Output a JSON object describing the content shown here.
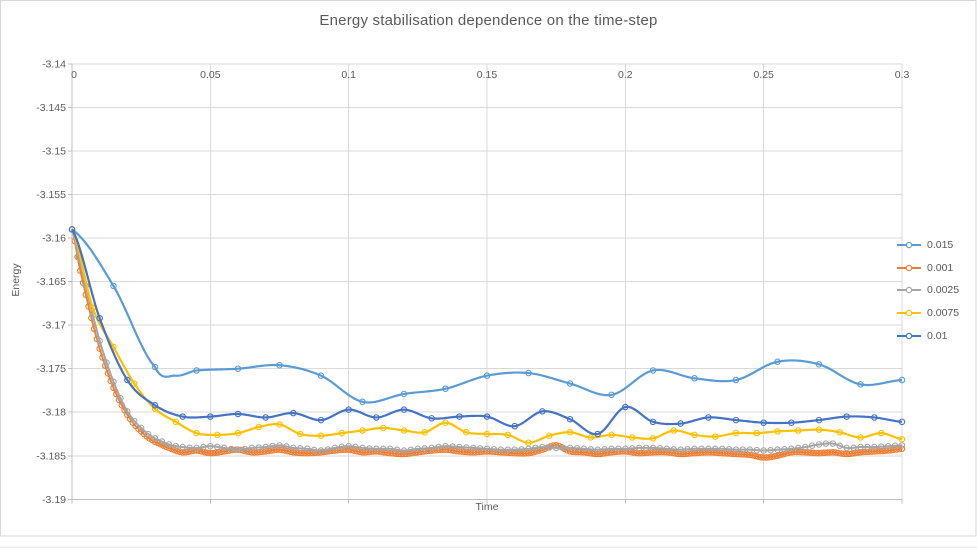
{
  "chart_data": {
    "type": "line",
    "title": "Energy stabilisation dependence on the time-step",
    "xlabel": "Time",
    "ylabel": "Energy",
    "xlim": [
      0,
      0.3
    ],
    "ylim": [
      -3.19,
      -3.14
    ],
    "grid": true,
    "x_ticks": [
      0,
      0.05,
      0.1,
      0.15,
      0.2,
      0.25,
      0.3
    ],
    "x_tick_labels": [
      "0",
      "0.05",
      "0.1",
      "0.15",
      "0.2",
      "0.25",
      "0.3"
    ],
    "y_ticks": [
      -3.14,
      -3.145,
      -3.15,
      -3.155,
      -3.16,
      -3.165,
      -3.17,
      -3.175,
      -3.18,
      -3.185,
      -3.19
    ],
    "y_tick_labels": [
      "-3.14",
      "-3.145",
      "-3.15",
      "-3.155",
      "-3.16",
      "-3.165",
      "-3.17",
      "-3.175",
      "-3.18",
      "-3.185",
      "-3.19"
    ],
    "legend": {
      "position": "right",
      "items": [
        "0.015",
        "0.001",
        "0.0025",
        "0.0075",
        "0.01"
      ]
    },
    "colors": {
      "text": "#595959",
      "grid": "#D9D9D9",
      "axis": "#BFBFBF"
    },
    "series": [
      {
        "name": "0.015",
        "color": "#5B9BD5",
        "marker": "open-circle",
        "time_step": 0.015,
        "points": [
          [
            0,
            -3.159
          ],
          [
            0.015,
            -3.1655
          ],
          [
            0.03,
            -3.1748
          ],
          [
            0.0375,
            -3.1758
          ],
          [
            0.045,
            -3.1752
          ],
          [
            0.06,
            -3.175
          ],
          [
            0.075,
            -3.1746
          ],
          [
            0.09,
            -3.1758
          ],
          [
            0.105,
            -3.1788
          ],
          [
            0.12,
            -3.1779
          ],
          [
            0.135,
            -3.1773
          ],
          [
            0.15,
            -3.1758
          ],
          [
            0.165,
            -3.1755
          ],
          [
            0.18,
            -3.1767
          ],
          [
            0.195,
            -3.178
          ],
          [
            0.21,
            -3.1752
          ],
          [
            0.225,
            -3.1761
          ],
          [
            0.24,
            -3.1763
          ],
          [
            0.255,
            -3.1742
          ],
          [
            0.27,
            -3.1745
          ],
          [
            0.285,
            -3.1768
          ],
          [
            0.3,
            -3.1763
          ]
        ]
      },
      {
        "name": "0.001",
        "color": "#ED7D31",
        "marker": "open-circle",
        "time_step": 0.001,
        "points": [
          [
            0,
            -3.159
          ],
          [
            0.0025,
            -3.163
          ],
          [
            0.005,
            -3.1665
          ],
          [
            0.0075,
            -3.1698
          ],
          [
            0.01,
            -3.1727
          ],
          [
            0.0125,
            -3.1751
          ],
          [
            0.015,
            -3.1772
          ],
          [
            0.0175,
            -3.1789
          ],
          [
            0.02,
            -3.1803
          ],
          [
            0.0225,
            -3.1814
          ],
          [
            0.025,
            -3.1822
          ],
          [
            0.0275,
            -3.1829
          ],
          [
            0.03,
            -3.1834
          ],
          [
            0.035,
            -3.1841
          ],
          [
            0.04,
            -3.1846
          ],
          [
            0.045,
            -3.1844
          ],
          [
            0.05,
            -3.1847
          ],
          [
            0.055,
            -3.1845
          ],
          [
            0.06,
            -3.1843
          ],
          [
            0.065,
            -3.1846
          ],
          [
            0.07,
            -3.1845
          ],
          [
            0.075,
            -3.1843
          ],
          [
            0.08,
            -3.1846
          ],
          [
            0.085,
            -3.1847
          ],
          [
            0.09,
            -3.1846
          ],
          [
            0.095,
            -3.1844
          ],
          [
            0.1,
            -3.1843
          ],
          [
            0.105,
            -3.1846
          ],
          [
            0.11,
            -3.1845
          ],
          [
            0.115,
            -3.1847
          ],
          [
            0.12,
            -3.1848
          ],
          [
            0.125,
            -3.1846
          ],
          [
            0.13,
            -3.1844
          ],
          [
            0.135,
            -3.1843
          ],
          [
            0.14,
            -3.1845
          ],
          [
            0.145,
            -3.1846
          ],
          [
            0.15,
            -3.1845
          ],
          [
            0.155,
            -3.1846
          ],
          [
            0.16,
            -3.1847
          ],
          [
            0.165,
            -3.1847
          ],
          [
            0.17,
            -3.1843
          ],
          [
            0.175,
            -3.1838
          ],
          [
            0.18,
            -3.1845
          ],
          [
            0.185,
            -3.1846
          ],
          [
            0.19,
            -3.1848
          ],
          [
            0.195,
            -3.1846
          ],
          [
            0.2,
            -3.1845
          ],
          [
            0.205,
            -3.1847
          ],
          [
            0.21,
            -3.1846
          ],
          [
            0.215,
            -3.1846
          ],
          [
            0.22,
            -3.1848
          ],
          [
            0.225,
            -3.1847
          ],
          [
            0.23,
            -3.1846
          ],
          [
            0.235,
            -3.1847
          ],
          [
            0.24,
            -3.1848
          ],
          [
            0.245,
            -3.1849
          ],
          [
            0.25,
            -3.1852
          ],
          [
            0.255,
            -3.185
          ],
          [
            0.26,
            -3.1846
          ],
          [
            0.265,
            -3.1846
          ],
          [
            0.27,
            -3.1847
          ],
          [
            0.275,
            -3.1846
          ],
          [
            0.28,
            -3.1848
          ],
          [
            0.285,
            -3.1846
          ],
          [
            0.29,
            -3.1845
          ],
          [
            0.295,
            -3.1844
          ],
          [
            0.3,
            -3.1842
          ]
        ]
      },
      {
        "name": "0.0025",
        "color": "#A5A5A5",
        "marker": "open-circle",
        "time_step": 0.0025,
        "points": [
          [
            0,
            -3.159
          ],
          [
            0.0025,
            -3.1622
          ],
          [
            0.005,
            -3.1655
          ],
          [
            0.0075,
            -3.1688
          ],
          [
            0.01,
            -3.1718
          ],
          [
            0.0125,
            -3.1743
          ],
          [
            0.015,
            -3.1765
          ],
          [
            0.0175,
            -3.1784
          ],
          [
            0.02,
            -3.1799
          ],
          [
            0.0225,
            -3.181
          ],
          [
            0.025,
            -3.1818
          ],
          [
            0.0275,
            -3.1825
          ],
          [
            0.03,
            -3.183
          ],
          [
            0.035,
            -3.1837
          ],
          [
            0.04,
            -3.184
          ],
          [
            0.045,
            -3.1841
          ],
          [
            0.05,
            -3.1839
          ],
          [
            0.055,
            -3.1841
          ],
          [
            0.06,
            -3.1843
          ],
          [
            0.065,
            -3.1841
          ],
          [
            0.07,
            -3.184
          ],
          [
            0.075,
            -3.1838
          ],
          [
            0.08,
            -3.1841
          ],
          [
            0.085,
            -3.1842
          ],
          [
            0.09,
            -3.1844
          ],
          [
            0.095,
            -3.1841
          ],
          [
            0.1,
            -3.1839
          ],
          [
            0.105,
            -3.1841
          ],
          [
            0.11,
            -3.1842
          ],
          [
            0.115,
            -3.1842
          ],
          [
            0.12,
            -3.1844
          ],
          [
            0.125,
            -3.1842
          ],
          [
            0.13,
            -3.1841
          ],
          [
            0.135,
            -3.1839
          ],
          [
            0.14,
            -3.184
          ],
          [
            0.145,
            -3.1841
          ],
          [
            0.15,
            -3.1842
          ],
          [
            0.155,
            -3.1843
          ],
          [
            0.16,
            -3.1843
          ],
          [
            0.165,
            -3.1842
          ],
          [
            0.17,
            -3.184
          ],
          [
            0.175,
            -3.1841
          ],
          [
            0.18,
            -3.1841
          ],
          [
            0.185,
            -3.1842
          ],
          [
            0.19,
            -3.1843
          ],
          [
            0.195,
            -3.1842
          ],
          [
            0.2,
            -3.1842
          ],
          [
            0.205,
            -3.1841
          ],
          [
            0.21,
            -3.1841
          ],
          [
            0.215,
            -3.1842
          ],
          [
            0.22,
            -3.1843
          ],
          [
            0.225,
            -3.1842
          ],
          [
            0.23,
            -3.1842
          ],
          [
            0.235,
            -3.1842
          ],
          [
            0.24,
            -3.1843
          ],
          [
            0.245,
            -3.1843
          ],
          [
            0.25,
            -3.1844
          ],
          [
            0.255,
            -3.1843
          ],
          [
            0.26,
            -3.1842
          ],
          [
            0.265,
            -3.184
          ],
          [
            0.27,
            -3.1837
          ],
          [
            0.275,
            -3.1836
          ],
          [
            0.28,
            -3.1841
          ],
          [
            0.285,
            -3.184
          ],
          [
            0.29,
            -3.184
          ],
          [
            0.295,
            -3.1839
          ],
          [
            0.3,
            -3.1838
          ]
        ]
      },
      {
        "name": "0.0075",
        "color": "#FFC000",
        "marker": "open-circle",
        "time_step": 0.0075,
        "points": [
          [
            0,
            -3.159
          ],
          [
            0.0075,
            -3.168
          ],
          [
            0.015,
            -3.1725
          ],
          [
            0.0225,
            -3.1767
          ],
          [
            0.03,
            -3.1796
          ],
          [
            0.0375,
            -3.1811
          ],
          [
            0.045,
            -3.1824
          ],
          [
            0.0525,
            -3.1826
          ],
          [
            0.06,
            -3.1824
          ],
          [
            0.0675,
            -3.1817
          ],
          [
            0.075,
            -3.1814
          ],
          [
            0.0825,
            -3.1825
          ],
          [
            0.09,
            -3.1827
          ],
          [
            0.0975,
            -3.1824
          ],
          [
            0.105,
            -3.1821
          ],
          [
            0.1125,
            -3.1818
          ],
          [
            0.12,
            -3.1821
          ],
          [
            0.1275,
            -3.1823
          ],
          [
            0.135,
            -3.1812
          ],
          [
            0.1425,
            -3.1823
          ],
          [
            0.15,
            -3.1825
          ],
          [
            0.1575,
            -3.1826
          ],
          [
            0.165,
            -3.1835
          ],
          [
            0.1725,
            -3.1827
          ],
          [
            0.18,
            -3.1823
          ],
          [
            0.1875,
            -3.1829
          ],
          [
            0.195,
            -3.1826
          ],
          [
            0.2025,
            -3.1829
          ],
          [
            0.21,
            -3.183
          ],
          [
            0.2175,
            -3.1821
          ],
          [
            0.225,
            -3.1826
          ],
          [
            0.2325,
            -3.1828
          ],
          [
            0.24,
            -3.1824
          ],
          [
            0.2475,
            -3.1824
          ],
          [
            0.255,
            -3.1822
          ],
          [
            0.2625,
            -3.1821
          ],
          [
            0.27,
            -3.182
          ],
          [
            0.2775,
            -3.1823
          ],
          [
            0.285,
            -3.1829
          ],
          [
            0.2925,
            -3.1824
          ],
          [
            0.3,
            -3.1831
          ]
        ]
      },
      {
        "name": "0.01",
        "color": "#4472C4",
        "marker": "open-circle",
        "time_step": 0.01,
        "points": [
          [
            0,
            -3.159
          ],
          [
            0.01,
            -3.1692
          ],
          [
            0.02,
            -3.1763
          ],
          [
            0.03,
            -3.1792
          ],
          [
            0.04,
            -3.1805
          ],
          [
            0.05,
            -3.1805
          ],
          [
            0.06,
            -3.1802
          ],
          [
            0.07,
            -3.1806
          ],
          [
            0.08,
            -3.1801
          ],
          [
            0.09,
            -3.1809
          ],
          [
            0.1,
            -3.1797
          ],
          [
            0.11,
            -3.1806
          ],
          [
            0.12,
            -3.1797
          ],
          [
            0.13,
            -3.1807
          ],
          [
            0.14,
            -3.1805
          ],
          [
            0.15,
            -3.1805
          ],
          [
            0.16,
            -3.1816
          ],
          [
            0.17,
            -3.1799
          ],
          [
            0.18,
            -3.1808
          ],
          [
            0.19,
            -3.1825
          ],
          [
            0.2,
            -3.1794
          ],
          [
            0.21,
            -3.1811
          ],
          [
            0.22,
            -3.1813
          ],
          [
            0.23,
            -3.1806
          ],
          [
            0.24,
            -3.1809
          ],
          [
            0.25,
            -3.1812
          ],
          [
            0.26,
            -3.1812
          ],
          [
            0.27,
            -3.1809
          ],
          [
            0.28,
            -3.1805
          ],
          [
            0.29,
            -3.1806
          ],
          [
            0.3,
            -3.1811
          ]
        ]
      }
    ]
  }
}
